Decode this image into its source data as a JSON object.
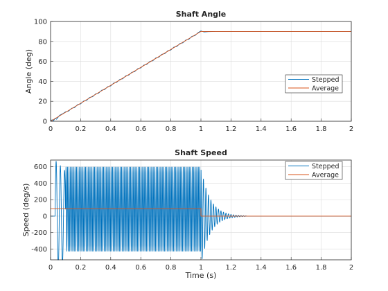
{
  "chart_data": [
    {
      "type": "line",
      "title": "Shaft Angle",
      "xlabel": "",
      "ylabel": "Angle (deg)",
      "xlim": [
        0,
        2
      ],
      "ylim": [
        0,
        100
      ],
      "xticks": [
        0,
        0.2,
        0.4,
        0.6,
        0.8,
        1,
        1.2,
        1.4,
        1.6,
        1.8,
        2
      ],
      "yticks": [
        0,
        20,
        40,
        60,
        80,
        100
      ],
      "grid": true,
      "legend_position": "right",
      "series": [
        {
          "name": "Stepped",
          "color": "#0072BD",
          "x": [
            0,
            0.01,
            0.02,
            0.03,
            0.04,
            0.06,
            0.08,
            0.1,
            0.12,
            0.14,
            0.16,
            0.18,
            0.2,
            0.22,
            0.24,
            0.26,
            0.28,
            0.3,
            0.32,
            0.34,
            0.36,
            0.38,
            0.4,
            0.42,
            0.44,
            0.46,
            0.48,
            0.5,
            0.52,
            0.54,
            0.56,
            0.58,
            0.6,
            0.62,
            0.64,
            0.66,
            0.68,
            0.7,
            0.72,
            0.74,
            0.76,
            0.78,
            0.8,
            0.82,
            0.84,
            0.86,
            0.88,
            0.9,
            0.92,
            0.94,
            0.96,
            0.98,
            1.0,
            1.02,
            1.05,
            1.1,
            1.2,
            1.4,
            2.0
          ],
          "y": [
            0,
            1.5,
            0.5,
            3,
            2,
            6,
            7.5,
            9.5,
            10.2,
            13,
            13.8,
            16.7,
            17.4,
            20.3,
            21,
            23.9,
            24.6,
            27.5,
            28.2,
            31.1,
            31.8,
            34.7,
            35.4,
            38.3,
            39,
            41.9,
            42.6,
            45.5,
            46.2,
            49.1,
            49.8,
            52.7,
            53.4,
            56.3,
            57,
            59.9,
            60.6,
            63.5,
            64.2,
            67.1,
            67.8,
            70.7,
            71.4,
            74.3,
            75,
            77.9,
            78.6,
            81.5,
            82.2,
            85.1,
            85.8,
            88.7,
            90.5,
            89.5,
            89.8,
            90,
            90,
            90,
            90
          ]
        },
        {
          "name": "Average",
          "color": "#D95319",
          "x": [
            0,
            1,
            2
          ],
          "y": [
            0,
            90,
            90
          ]
        }
      ]
    },
    {
      "type": "line",
      "title": "Shaft Speed",
      "xlabel": "Time (s)",
      "ylabel": "Speed (deg/s)",
      "xlim": [
        0,
        2
      ],
      "ylim": [
        -530,
        680
      ],
      "xticks": [
        0,
        0.2,
        0.4,
        0.6,
        0.8,
        1,
        1.2,
        1.4,
        1.6,
        1.8,
        2
      ],
      "yticks": [
        -400,
        -200,
        0,
        200,
        400,
        600
      ],
      "grid": true,
      "legend_position": "top-right",
      "series": [
        {
          "name": "Stepped",
          "color": "#0072BD",
          "x": [
            0,
            0.04,
            0.08,
            1,
            1.3,
            2
          ],
          "y": [
            0,
            680,
            -520,
            600,
            0,
            0
          ],
          "oscillation": {
            "frequency_hz": 100,
            "offset": 85,
            "amplitude": 510,
            "start": 0.1,
            "end": 1.0,
            "decay_end": 1.3
          }
        },
        {
          "name": "Average",
          "color": "#D95319",
          "x": [
            0,
            1,
            1.0001,
            2
          ],
          "y": [
            90,
            90,
            0,
            0
          ]
        }
      ]
    }
  ]
}
